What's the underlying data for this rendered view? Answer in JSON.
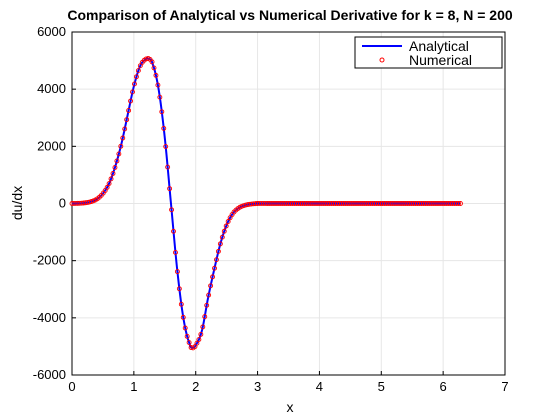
{
  "chart_data": {
    "type": "line",
    "title": "Comparison of Analytical vs Numerical Derivative for k = 8, N = 200",
    "xlabel": "x",
    "ylabel": "du/dx",
    "xlim": [
      0,
      7
    ],
    "ylim": [
      -6000,
      6000
    ],
    "xticks": [
      0,
      1,
      2,
      3,
      4,
      5,
      6,
      7
    ],
    "yticks": [
      -6000,
      -4000,
      -2000,
      0,
      2000,
      4000,
      6000
    ],
    "grid": true,
    "legend_position": "top-right",
    "series": [
      {
        "name": "Analytical",
        "style": "solid line",
        "color": "#0000ff",
        "x": [
          0.0,
          0.1,
          0.2,
          0.3,
          0.4,
          0.5,
          0.6,
          0.7,
          0.8,
          0.9,
          1.0,
          1.1,
          1.2,
          1.25,
          1.3,
          1.4,
          1.5,
          1.6,
          1.7,
          1.8,
          1.9,
          1.95,
          2.0,
          2.1,
          2.2,
          2.3,
          2.4,
          2.5,
          2.6,
          2.7,
          2.8,
          2.9,
          3.0,
          3.2,
          3.5,
          4.0,
          4.5,
          5.0,
          5.5,
          6.0,
          6.28
        ],
        "values": [
          0,
          5,
          20,
          60,
          150,
          350,
          700,
          1300,
          2100,
          3100,
          4100,
          4800,
          5060,
          5050,
          4900,
          4000,
          2300,
          0,
          -2300,
          -4000,
          -4900,
          -5050,
          -4950,
          -4450,
          -3300,
          -2300,
          -1400,
          -750,
          -350,
          -150,
          -60,
          -20,
          0,
          0,
          0,
          0,
          0,
          0,
          0,
          0,
          0
        ]
      },
      {
        "name": "Numerical",
        "style": "circle markers",
        "color": "#ff0000",
        "x": [
          0.0,
          0.1,
          0.2,
          0.3,
          0.4,
          0.5,
          0.6,
          0.7,
          0.8,
          0.9,
          1.0,
          1.1,
          1.2,
          1.25,
          1.3,
          1.4,
          1.5,
          1.6,
          1.7,
          1.8,
          1.9,
          1.95,
          2.0,
          2.1,
          2.2,
          2.3,
          2.4,
          2.5,
          2.6,
          2.7,
          2.8,
          2.9,
          3.0,
          3.2,
          3.5,
          4.0,
          4.5,
          5.0,
          5.5,
          6.0,
          6.28
        ],
        "values": [
          0,
          5,
          20,
          60,
          150,
          350,
          700,
          1300,
          2100,
          3100,
          4100,
          4800,
          5060,
          5050,
          4900,
          4000,
          2300,
          0,
          -2300,
          -4000,
          -4900,
          -5050,
          -4950,
          -4450,
          -3300,
          -2300,
          -1400,
          -750,
          -350,
          -150,
          -60,
          -20,
          0,
          0,
          0,
          0,
          0,
          0,
          0,
          0,
          0
        ]
      }
    ]
  }
}
